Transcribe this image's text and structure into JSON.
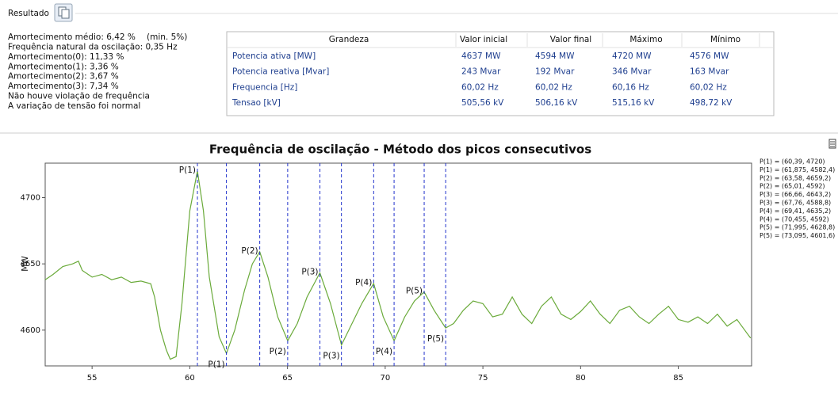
{
  "header": {
    "title": "Resultado"
  },
  "summary": {
    "main": "Amortecimento médio: 6,42 %",
    "min": "(min. 5%)",
    "lines": [
      "Frequência natural da oscilação: 0,35 Hz",
      "Amortecimento(0):  11,33 %",
      "Amortecimento(1):  3,36 %",
      "Amortecimento(2):  3,67 %",
      "Amortecimento(3):  7,34 %",
      "Não houve violação de frequência",
      "A variação de tensão foi normal"
    ]
  },
  "table": {
    "columns": [
      "Grandeza",
      "Valor inicial",
      "Valor final",
      "Máximo",
      "Mínimo"
    ],
    "rows": [
      [
        "Potencia ativa [MW]",
        "4637 MW",
        "4594 MW",
        "4720 MW",
        "4576 MW"
      ],
      [
        "Potencia reativa [Mvar]",
        "243 Mvar",
        "192 Mvar",
        "346 Mvar",
        "163 Mvar"
      ],
      [
        "Frequencia [Hz]",
        "60,02 Hz",
        "60,02 Hz",
        "60,16 Hz",
        "60,02 Hz"
      ],
      [
        "Tensao [kV]",
        "505,56 kV",
        "506,16 kV",
        "515,16 kV",
        "498,72 kV"
      ]
    ]
  },
  "chart_data": {
    "type": "line",
    "title": "Frequência de oscilação - Método dos picos consecutivos",
    "ylabel": "MW",
    "color": "#6aaa3a",
    "marker_color": "#2233cc",
    "x": [
      52.6,
      53,
      53.5,
      54,
      54.3,
      54.5,
      55,
      55.5,
      56,
      56.5,
      57,
      57.5,
      58,
      58.2,
      58.5,
      58.8,
      59,
      59.3,
      59.6,
      60,
      60.39,
      60.7,
      61,
      61.5,
      61.875,
      62.3,
      62.8,
      63.2,
      63.58,
      64,
      64.5,
      65.01,
      65.5,
      66,
      66.66,
      67.2,
      67.76,
      68.3,
      68.8,
      69.41,
      69.9,
      70.455,
      71,
      71.5,
      71.995,
      72.5,
      73.095,
      73.5,
      74,
      74.5,
      75,
      75.5,
      76,
      76.5,
      77,
      77.5,
      78,
      78.5,
      79,
      79.5,
      80,
      80.5,
      81,
      81.5,
      82,
      82.5,
      83,
      83.5,
      84,
      84.5,
      85,
      85.5,
      86,
      86.5,
      87,
      87.5,
      88,
      88.5,
      88.7
    ],
    "values": [
      4638,
      4642,
      4648,
      4650,
      4652,
      4645,
      4640,
      4642,
      4638,
      4640,
      4636,
      4637,
      4635,
      4625,
      4600,
      4585,
      4578,
      4580,
      4620,
      4690,
      4720,
      4690,
      4640,
      4595,
      4582.4,
      4600,
      4630,
      4650,
      4659.2,
      4640,
      4610,
      4592,
      4605,
      4625,
      4643.2,
      4620,
      4588.8,
      4605,
      4620,
      4635.2,
      4610,
      4592,
      4610,
      4622,
      4628.8,
      4615,
      4601.6,
      4605,
      4615,
      4622,
      4620,
      4610,
      4612,
      4625,
      4612,
      4605,
      4618,
      4625,
      4612,
      4608,
      4614,
      4622,
      4612,
      4605,
      4615,
      4618,
      4610,
      4605,
      4612,
      4618,
      4608,
      4606,
      4610,
      4605,
      4612,
      4603,
      4608,
      4598,
      4594
    ],
    "xlim": [
      52.6,
      88.75
    ],
    "ylim": [
      4573,
      4726
    ],
    "xticks": [
      55,
      60,
      65,
      70,
      75,
      80,
      85
    ],
    "yticks": [
      4600,
      4650,
      4700
    ],
    "peaks": [
      {
        "label": "P(1)",
        "x": 60.39,
        "y": 4720
      },
      {
        "label": "P(1)",
        "x": 61.875,
        "y": 4582.4
      },
      {
        "label": "P(2)",
        "x": 63.58,
        "y": 4659.2
      },
      {
        "label": "P(2)",
        "x": 65.01,
        "y": 4592
      },
      {
        "label": "P(3)",
        "x": 66.66,
        "y": 4643.2
      },
      {
        "label": "P(3)",
        "x": 67.76,
        "y": 4588.8
      },
      {
        "label": "P(4)",
        "x": 69.41,
        "y": 4635.2
      },
      {
        "label": "P(4)",
        "x": 70.455,
        "y": 4592
      },
      {
        "label": "P(5)",
        "x": 71.995,
        "y": 4628.8
      },
      {
        "label": "P(5)",
        "x": 73.095,
        "y": 4601.6
      }
    ],
    "legend": [
      "P(1) = (60,39, 4720)",
      "P(1) = (61,875, 4582,4)",
      "P(2) = (63,58, 4659,2)",
      "P(2) = (65,01, 4592)",
      "P(3) = (66,66, 4643,2)",
      "P(3) = (67,76, 4588,8)",
      "P(4) = (69,41, 4635,2)",
      "P(4) = (70,455, 4592)",
      "P(5) = (71,995, 4628,8)",
      "P(5) = (73,095, 4601,6)"
    ]
  }
}
